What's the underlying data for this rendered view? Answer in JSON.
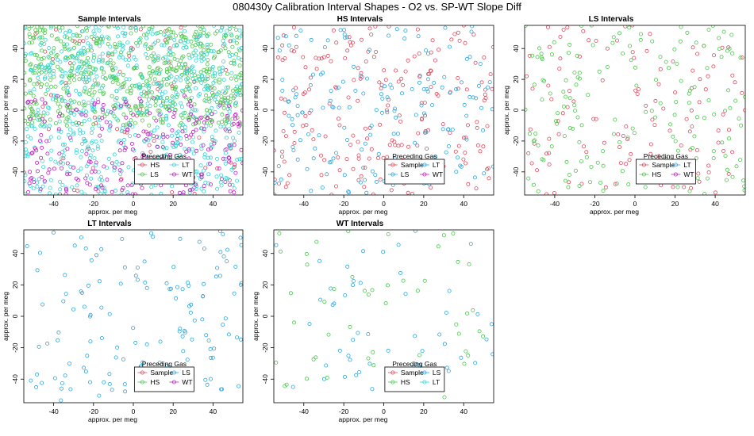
{
  "figure": {
    "title": "080430y   Calibration Interval Shapes - O2 vs. SP-WT Slope Diff"
  },
  "colors": {
    "HS": "#e34a5e",
    "LS": "#4cc94c",
    "LT": "#2ca8e0",
    "WT": "#c81ec8",
    "Sample": "#e34a5e",
    "Sample_interval_LT": "#35d6d6"
  },
  "chart_data": [
    {
      "type": "scatter",
      "title": "Sample Intervals",
      "xlabel": "approx. per meg",
      "ylabel": "approx. per meg",
      "xlim": [
        -55,
        55
      ],
      "ylim": [
        -55,
        55
      ],
      "xticks": [
        -40,
        -20,
        0,
        20,
        40
      ],
      "yticks": [
        -40,
        -20,
        0,
        20,
        40
      ],
      "legend": {
        "title": "Preceding Gas",
        "placement": "bottom-right",
        "entries": [
          {
            "name": "HS",
            "color": "#e34a5e"
          },
          {
            "name": "LT",
            "color": "#35d6d6"
          },
          {
            "name": "LS",
            "color": "#4cc94c"
          },
          {
            "name": "WT",
            "color": "#c81ec8"
          }
        ]
      },
      "series": [
        {
          "name": "HS",
          "color": "#e34a5e",
          "n": 80,
          "x_range": [
            -55,
            55
          ],
          "y_range": [
            -55,
            55
          ]
        },
        {
          "name": "LS",
          "color": "#4cc94c",
          "n": 620,
          "x_range": [
            -55,
            55
          ],
          "y_range": [
            -10,
            55
          ]
        },
        {
          "name": "LT",
          "color": "#35d6d6",
          "n": 700,
          "x_range": [
            -55,
            55
          ],
          "y_range": [
            -55,
            55
          ]
        },
        {
          "name": "WT",
          "color": "#c81ec8",
          "n": 230,
          "x_range": [
            -55,
            55
          ],
          "y_range": [
            -55,
            10
          ]
        }
      ]
    },
    {
      "type": "scatter",
      "title": "HS Intervals",
      "xlabel": "approx. per meg",
      "ylabel": "approx. per meg",
      "xlim": [
        -55,
        55
      ],
      "ylim": [
        -55,
        55
      ],
      "xticks": [
        -40,
        -20,
        0,
        20,
        40
      ],
      "yticks": [
        -40,
        -20,
        0,
        20,
        40
      ],
      "legend": {
        "title": "Preceding Gas",
        "placement": "bottom-right",
        "entries": [
          {
            "name": "Sample",
            "color": "#e34a5e"
          },
          {
            "name": "LT",
            "color": "#2ca8e0"
          },
          {
            "name": "LS",
            "color": "#2ca8e0"
          },
          {
            "name": "WT",
            "color": "#c81ec8"
          }
        ]
      },
      "series": [
        {
          "name": "Sample",
          "color": "#e34a5e",
          "n": 210,
          "x_range": [
            -55,
            55
          ],
          "y_range": [
            -55,
            55
          ]
        },
        {
          "name": "LT",
          "color": "#2ca8e0",
          "n": 170,
          "x_range": [
            -55,
            55
          ],
          "y_range": [
            -55,
            55
          ]
        }
      ]
    },
    {
      "type": "scatter",
      "title": "LS Intervals",
      "xlabel": "approx. per meg",
      "ylabel": "approx. per meg",
      "xlim": [
        -55,
        55
      ],
      "ylim": [
        -55,
        55
      ],
      "xticks": [
        -40,
        -20,
        0,
        20,
        40
      ],
      "yticks": [
        -40,
        -20,
        0,
        20,
        40
      ],
      "legend": {
        "title": "Preceding Gas",
        "placement": "bottom-right",
        "entries": [
          {
            "name": "Sample",
            "color": "#e34a5e"
          },
          {
            "name": "LT",
            "color": "#2ca8e0"
          },
          {
            "name": "HS",
            "color": "#4cc94c"
          },
          {
            "name": "WT",
            "color": "#c81ec8"
          }
        ]
      },
      "series": [
        {
          "name": "Sample",
          "color": "#e34a5e",
          "n": 120,
          "x_range": [
            -55,
            55
          ],
          "y_range": [
            -55,
            55
          ]
        },
        {
          "name": "HS",
          "color": "#4cc94c",
          "n": 170,
          "x_range": [
            -55,
            55
          ],
          "y_range": [
            -55,
            55
          ]
        }
      ]
    },
    {
      "type": "scatter",
      "title": "LT Intervals",
      "xlabel": "approx. per meg",
      "ylabel": "approx. per meg",
      "xlim": [
        -55,
        55
      ],
      "ylim": [
        -55,
        55
      ],
      "xticks": [
        -40,
        -20,
        0,
        20,
        40
      ],
      "yticks": [
        -40,
        -20,
        0,
        20,
        40
      ],
      "legend": {
        "title": "Preceding Gas",
        "placement": "bottom-right",
        "entries": [
          {
            "name": "Sample",
            "color": "#e34a5e"
          },
          {
            "name": "LS",
            "color": "#2ca8e0"
          },
          {
            "name": "HS",
            "color": "#4cc94c"
          },
          {
            "name": "WT",
            "color": "#c81ec8"
          }
        ]
      },
      "series": [
        {
          "name": "LS",
          "color": "#2ca8e0",
          "n": 140,
          "x_range": [
            -55,
            55
          ],
          "y_range": [
            -55,
            55
          ]
        }
      ]
    },
    {
      "type": "scatter",
      "title": "WT Intervals",
      "xlabel": "approx. per meg",
      "ylabel": "approx. per meg",
      "xlim": [
        -55,
        55
      ],
      "ylim": [
        -55,
        55
      ],
      "xticks": [
        -40,
        -20,
        0,
        20,
        40
      ],
      "yticks": [
        -40,
        -20,
        0,
        20,
        40
      ],
      "legend": {
        "title": "Preceding Gas",
        "placement": "bottom-right",
        "entries": [
          {
            "name": "Sample",
            "color": "#e34a5e"
          },
          {
            "name": "LS",
            "color": "#2ca8e0"
          },
          {
            "name": "HS",
            "color": "#4cc94c"
          },
          {
            "name": "LT",
            "color": "#35d6d6"
          }
        ]
      },
      "series": [
        {
          "name": "LS",
          "color": "#2ca8e0",
          "n": 55,
          "x_range": [
            -55,
            55
          ],
          "y_range": [
            -55,
            55
          ]
        },
        {
          "name": "HS",
          "color": "#4cc94c",
          "n": 50,
          "x_range": [
            -55,
            55
          ],
          "y_range": [
            -55,
            55
          ]
        }
      ]
    }
  ]
}
